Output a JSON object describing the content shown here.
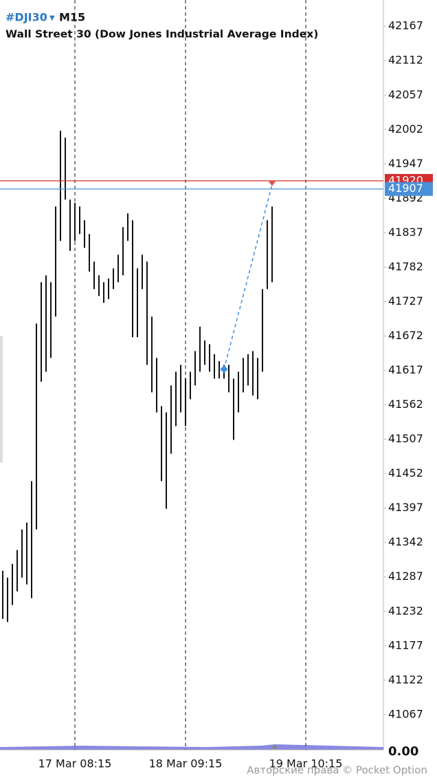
{
  "header": {
    "symbol": "#DJI30",
    "timeframe": "M15",
    "name": "Wall Street 30 (Dow Jones Industrial Average Index)"
  },
  "chart_data": {
    "type": "ohlc",
    "categories": [
      null,
      null,
      null,
      null,
      null,
      null,
      null,
      null,
      null,
      null,
      null,
      null,
      null,
      null,
      null,
      "17 Mar 08:15",
      null,
      null,
      null,
      null,
      null,
      null,
      null,
      null,
      null,
      null,
      null,
      null,
      null,
      null,
      null,
      null,
      null,
      null,
      null,
      null,
      null,
      null,
      "18 Mar 09:15",
      null,
      null,
      null,
      null,
      null,
      null,
      null,
      null,
      null,
      null,
      null,
      null,
      null,
      null,
      null,
      null,
      null,
      null,
      null,
      null,
      null,
      null,
      null,
      null,
      "19 Mar 10:15",
      null
    ],
    "series": [
      {
        "name": "High",
        "color": "#111111",
        "values": [
          41297,
          41286,
          41308,
          41330,
          41363,
          41374,
          41440,
          41692,
          41758,
          41769,
          41758,
          41879,
          42000,
          41989,
          41890,
          41885,
          41879,
          41857,
          41835,
          41791,
          41769,
          41758,
          41764,
          41780,
          41802,
          41846,
          41868,
          41857,
          41780,
          41802,
          41791,
          41703,
          41637,
          41560,
          41550,
          41593,
          41615,
          41626,
          41604,
          41615,
          41648,
          41687,
          41665,
          41659,
          41643,
          41632,
          41626,
          41626,
          41604,
          41615,
          41637,
          41643,
          41648,
          41637,
          41747,
          41857,
          41879,
          null,
          null,
          null,
          null,
          null,
          null,
          null,
          null
        ]
      },
      {
        "name": "Low",
        "color": "#111111",
        "values": [
          41220,
          41215,
          41242,
          41264,
          41286,
          41275,
          41253,
          41363,
          41599,
          41615,
          41637,
          41703,
          41824,
          41890,
          41808,
          41824,
          41835,
          41813,
          41775,
          41747,
          41736,
          41725,
          41731,
          41747,
          41758,
          41769,
          41824,
          41670,
          41670,
          41747,
          41626,
          41582,
          41550,
          41440,
          41396,
          41484,
          41528,
          41550,
          41528,
          41571,
          41593,
          41615,
          41626,
          41615,
          41604,
          41604,
          41604,
          41582,
          41506,
          41550,
          41582,
          41593,
          41577,
          41571,
          41615,
          41747,
          41758,
          null,
          null,
          null,
          null,
          null,
          null,
          null,
          null
        ]
      }
    ],
    "ylim": [
      41013,
      42209
    ],
    "yticks": [
      42167,
      42112,
      42057,
      42002,
      41947,
      41892,
      41837,
      41782,
      41727,
      41672,
      41617,
      41562,
      41507,
      41452,
      41397,
      41342,
      41287,
      41232,
      41177,
      41122,
      41067
    ],
    "price_lines": [
      {
        "value": 41920,
        "color": "#d32f2f"
      },
      {
        "value": 41907,
        "color": "#4a90d9"
      }
    ],
    "trade": {
      "open_index": 46,
      "open_price": 41619,
      "close_index": 56,
      "close_price": 41914,
      "color": "#3b8ee8"
    },
    "volume_ticks": [
      {
        "value": 0,
        "label": "0.00"
      }
    ]
  },
  "footer": {
    "copyright": "Авторские права © Pocket Option"
  }
}
